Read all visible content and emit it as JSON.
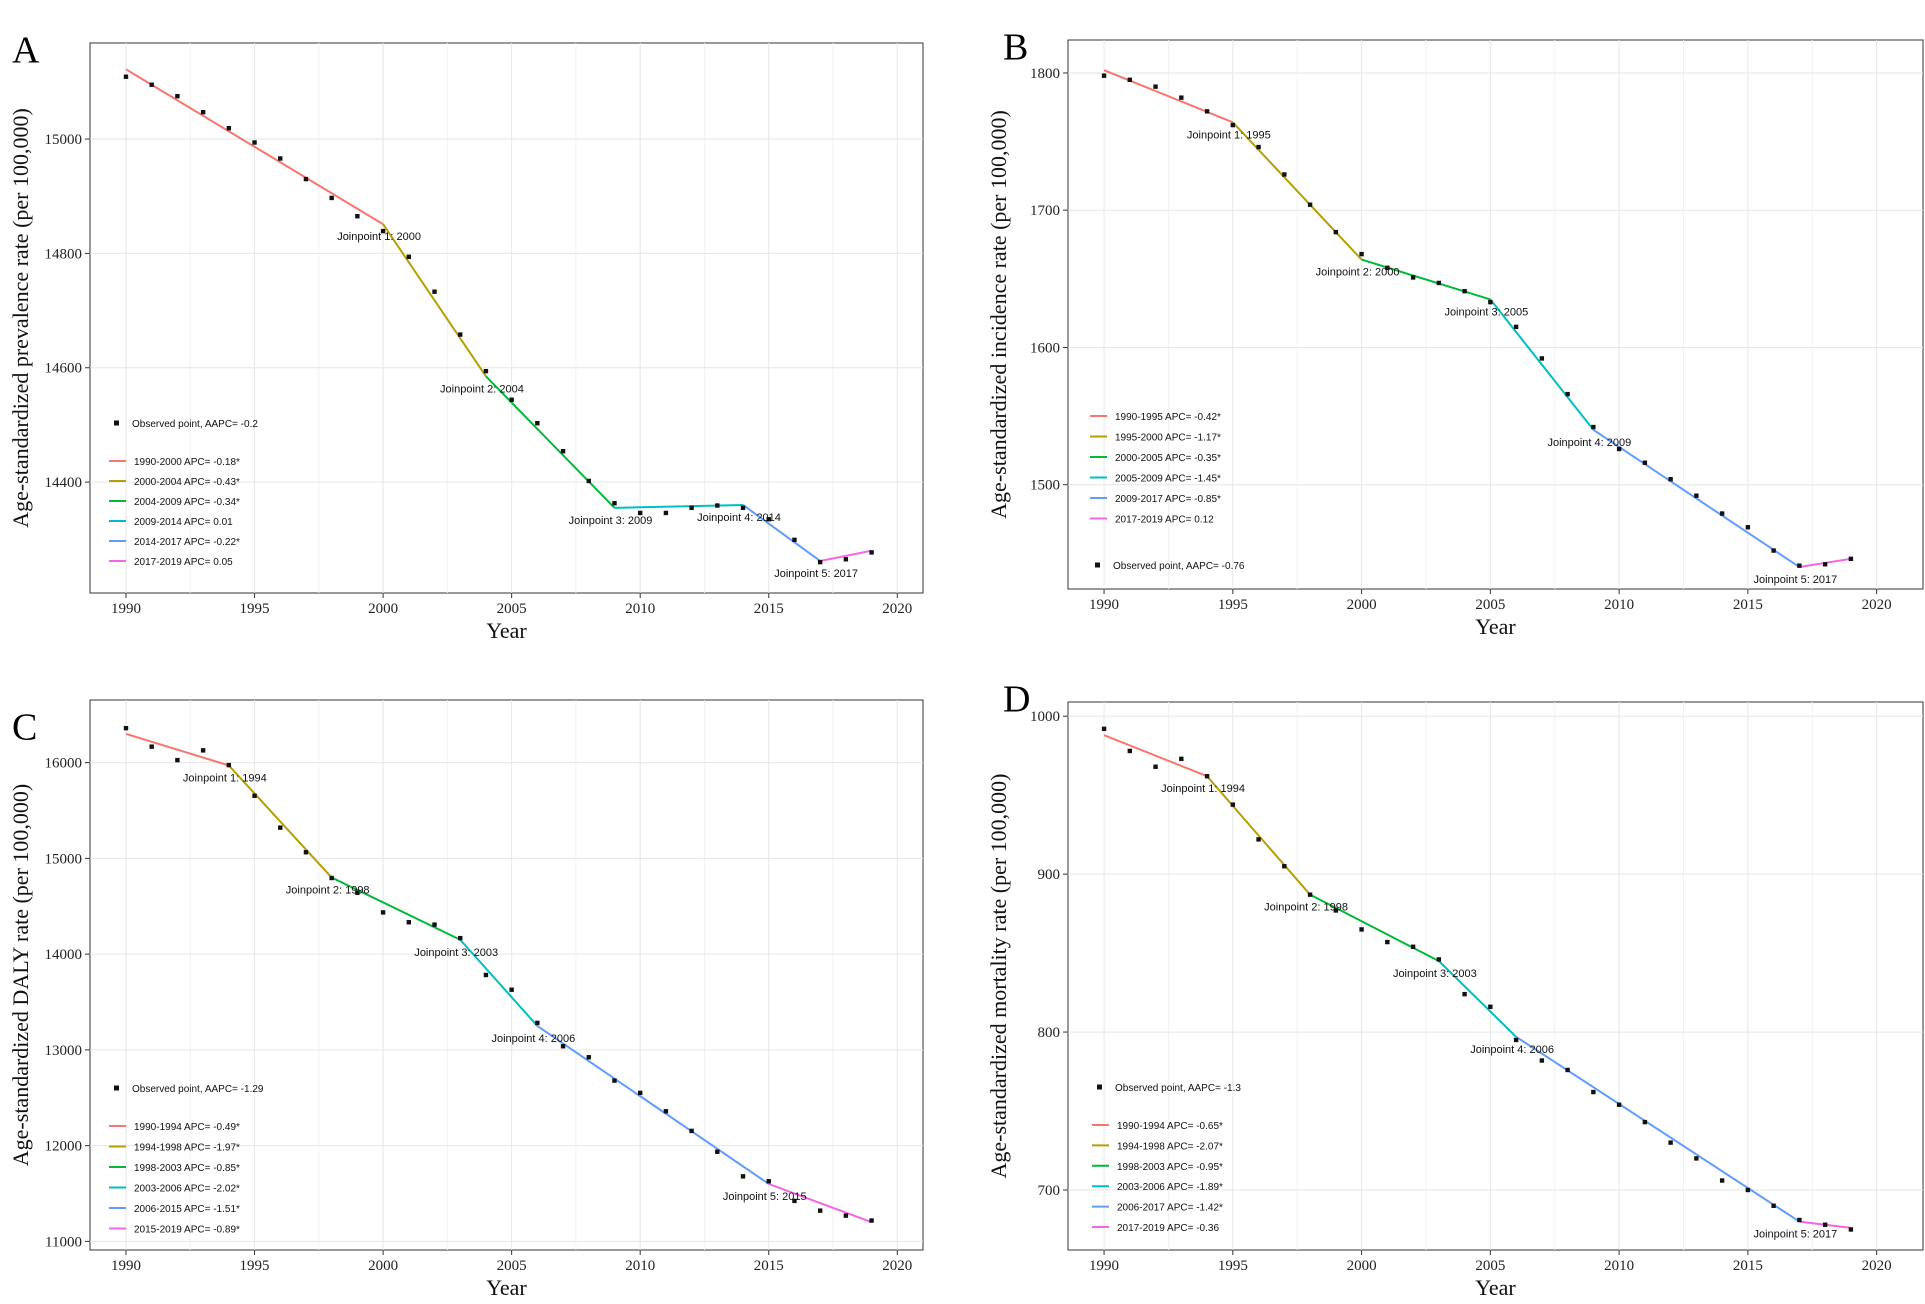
{
  "chart_data": [
    {
      "panel": "A",
      "type": "line",
      "xlabel": "Year",
      "ylabel": "Age-standardized prevalence rate (per 100,000)",
      "xlim": [
        1988.6,
        2021
      ],
      "ylim": [
        14206,
        15168
      ],
      "xticks": [
        1990,
        1995,
        2000,
        2005,
        2010,
        2015,
        2020
      ],
      "yticks": [
        14400,
        14600,
        14800,
        15000
      ],
      "observed_label": "Observed point, AAPC= -0.2",
      "legend_observed_first": true,
      "x": [
        1990,
        1991,
        1992,
        1993,
        1994,
        1995,
        1996,
        1997,
        1998,
        1999,
        2000,
        2001,
        2002,
        2003,
        2004,
        2005,
        2006,
        2007,
        2008,
        2009,
        2010,
        2011,
        2012,
        2013,
        2014,
        2015,
        2016,
        2017,
        2018,
        2019
      ],
      "observed": [
        15109,
        15095,
        15075,
        15047,
        15019,
        14994,
        14966,
        14930,
        14897,
        14865,
        14839,
        14794,
        14733,
        14658,
        14594,
        14544,
        14503,
        14454,
        14402,
        14363,
        14346,
        14346,
        14355,
        14359,
        14355,
        14335,
        14299,
        14260,
        14265,
        14277
      ],
      "segments": [
        {
          "label": "1990-2000 APC= -0.18*",
          "x": [
            1990,
            2000
          ],
          "y": [
            15122,
            14851
          ],
          "color": "#F8766D"
        },
        {
          "label": "2000-2004 APC= -0.43*",
          "x": [
            2000,
            2004
          ],
          "y": [
            14851,
            14585
          ],
          "color": "#B79F00"
        },
        {
          "label": "2004-2009 APC= -0.34*",
          "x": [
            2004,
            2009
          ],
          "y": [
            14585,
            14355
          ],
          "color": "#00BA38"
        },
        {
          "label": "2009-2014 APC= 0.01",
          "x": [
            2009,
            2014
          ],
          "y": [
            14355,
            14360
          ],
          "color": "#00BFC4"
        },
        {
          "label": "2014-2017 APC= -0.22*",
          "x": [
            2014,
            2017
          ],
          "y": [
            14360,
            14262
          ],
          "color": "#619CFF"
        },
        {
          "label": "2017-2019 APC= 0.05",
          "x": [
            2017,
            2019
          ],
          "y": [
            14262,
            14280
          ],
          "color": "#F564E3"
        }
      ],
      "joinpoints": [
        {
          "label": "Joinpoint 1: 2000",
          "x": 2000,
          "y": 14851
        },
        {
          "label": "Joinpoint 2: 2004",
          "x": 2004,
          "y": 14585
        },
        {
          "label": "Joinpoint 3: 2009",
          "x": 2009,
          "y": 14355
        },
        {
          "label": "Joinpoint 4: 2014",
          "x": 2014,
          "y": 14360
        },
        {
          "label": "Joinpoint 5: 2017",
          "x": 2017,
          "y": 14262
        }
      ]
    },
    {
      "panel": "B",
      "type": "line",
      "xlabel": "Year",
      "ylabel": "Age-standardized incidence rate (per 100,000)",
      "xlim": [
        1988.6,
        2021.8
      ],
      "ylim": [
        1424,
        1824
      ],
      "xticks": [
        1990,
        1995,
        2000,
        2005,
        2010,
        2015,
        2020
      ],
      "yticks": [
        1500,
        1600,
        1700,
        1800
      ],
      "observed_label": "Observed point, AAPC= -0.76",
      "legend_observed_first": false,
      "x": [
        1990,
        1991,
        1992,
        1993,
        1994,
        1995,
        1996,
        1997,
        1998,
        1999,
        2000,
        2001,
        2002,
        2003,
        2004,
        2005,
        2006,
        2007,
        2008,
        2009,
        2010,
        2011,
        2012,
        2013,
        2014,
        2015,
        2016,
        2017,
        2018,
        2019
      ],
      "observed": [
        1798,
        1795,
        1790,
        1782,
        1772,
        1762,
        1746,
        1726,
        1704,
        1684,
        1668,
        1658,
        1651,
        1647,
        1641,
        1633,
        1615,
        1592,
        1566,
        1542,
        1526,
        1516,
        1504,
        1492,
        1479,
        1469,
        1452,
        1441,
        1442,
        1446
      ],
      "segments": [
        {
          "label": "1990-1995 APC= -0.42*",
          "x": [
            1990,
            1995
          ],
          "y": [
            1802,
            1764
          ],
          "color": "#F8766D"
        },
        {
          "label": "1995-2000 APC= -1.17*",
          "x": [
            1995,
            2000
          ],
          "y": [
            1764,
            1664
          ],
          "color": "#B79F00"
        },
        {
          "label": "2000-2005 APC= -0.35*",
          "x": [
            2000,
            2005
          ],
          "y": [
            1664,
            1635
          ],
          "color": "#00BA38"
        },
        {
          "label": "2005-2009 APC= -1.45*",
          "x": [
            2005,
            2009
          ],
          "y": [
            1635,
            1540
          ],
          "color": "#00BFC4"
        },
        {
          "label": "2009-2017 APC= -0.85*",
          "x": [
            2009,
            2017
          ],
          "y": [
            1540,
            1440
          ],
          "color": "#619CFF"
        },
        {
          "label": "2017-2019 APC= 0.12",
          "x": [
            2017,
            2019
          ],
          "y": [
            1440,
            1446
          ],
          "color": "#F564E3"
        }
      ],
      "joinpoints": [
        {
          "label": "Joinpoint 1: 1995",
          "x": 1995,
          "y": 1764
        },
        {
          "label": "Joinpoint 2: 2000",
          "x": 2000,
          "y": 1664
        },
        {
          "label": "Joinpoint 3: 2005",
          "x": 2005,
          "y": 1635
        },
        {
          "label": "Joinpoint 4: 2009",
          "x": 2009,
          "y": 1540
        },
        {
          "label": "Joinpoint 5: 2017",
          "x": 2017,
          "y": 1440
        }
      ]
    },
    {
      "panel": "C",
      "type": "line",
      "xlabel": "Year",
      "ylabel": "Age-standardized DALY rate (per 100,000)",
      "xlim": [
        1988.6,
        2021
      ],
      "ylim": [
        10910,
        16654
      ],
      "xticks": [
        1990,
        1995,
        2000,
        2005,
        2010,
        2015,
        2020
      ],
      "yticks": [
        11000,
        12000,
        13000,
        14000,
        15000,
        16000
      ],
      "observed_label": "Observed point, AAPC= -1.29",
      "legend_observed_first": true,
      "x": [
        1990,
        1991,
        1992,
        1993,
        1994,
        1995,
        1996,
        1997,
        1998,
        1999,
        2000,
        2001,
        2002,
        2003,
        2004,
        2005,
        2006,
        2007,
        2008,
        2009,
        2010,
        2011,
        2012,
        2013,
        2014,
        2015,
        2016,
        2017,
        2018,
        2019
      ],
      "observed": [
        16360,
        16167,
        16026,
        16128,
        15974,
        15654,
        15321,
        15064,
        14795,
        14641,
        14436,
        14333,
        14308,
        14167,
        13782,
        13628,
        13282,
        13038,
        12923,
        12679,
        12551,
        12359,
        12154,
        11936,
        11679,
        11628,
        11423,
        11321,
        11269,
        11218
      ],
      "segments": [
        {
          "label": "1990-1994 APC= -0.49*",
          "x": [
            1990,
            1994
          ],
          "y": [
            16300,
            15970
          ],
          "color": "#F8766D"
        },
        {
          "label": "1994-1998 APC= -1.97*",
          "x": [
            1994,
            1998
          ],
          "y": [
            15970,
            14800
          ],
          "color": "#B79F00"
        },
        {
          "label": "1998-2003 APC= -0.85*",
          "x": [
            1998,
            2003
          ],
          "y": [
            14800,
            14150
          ],
          "color": "#00BA38"
        },
        {
          "label": "2003-2006 APC= -2.02*",
          "x": [
            2003,
            2006
          ],
          "y": [
            14150,
            13250
          ],
          "color": "#00BFC4"
        },
        {
          "label": "2006-2015 APC= -1.51*",
          "x": [
            2006,
            2015
          ],
          "y": [
            13250,
            11600
          ],
          "color": "#619CFF"
        },
        {
          "label": "2015-2019 APC= -0.89*",
          "x": [
            2015,
            2019
          ],
          "y": [
            11600,
            11200
          ],
          "color": "#F564E3"
        }
      ],
      "joinpoints": [
        {
          "label": "Joinpoint 1: 1994",
          "x": 1994,
          "y": 15970
        },
        {
          "label": "Joinpoint 2: 1998",
          "x": 1998,
          "y": 14800
        },
        {
          "label": "Joinpoint 3: 2003",
          "x": 2003,
          "y": 14150
        },
        {
          "label": "Joinpoint 4: 2006",
          "x": 2006,
          "y": 13250
        },
        {
          "label": "Joinpoint 5: 2015",
          "x": 2015,
          "y": 11600
        }
      ]
    },
    {
      "panel": "D",
      "type": "line",
      "xlabel": "Year",
      "ylabel": "Age-standardized mortality rate (per 100,000)",
      "xlim": [
        1988.6,
        2021.8
      ],
      "ylim": [
        662,
        1009
      ],
      "xticks": [
        1990,
        1995,
        2000,
        2005,
        2010,
        2015,
        2020
      ],
      "yticks": [
        700,
        800,
        900,
        1000
      ],
      "observed_label": "Observed point, AAPC= -1.3",
      "legend_observed_first": true,
      "x": [
        1990,
        1991,
        1992,
        1993,
        1994,
        1995,
        1996,
        1997,
        1998,
        1999,
        2000,
        2001,
        2002,
        2003,
        2004,
        2005,
        2006,
        2007,
        2008,
        2009,
        2010,
        2011,
        2012,
        2013,
        2014,
        2015,
        2016,
        2017,
        2018,
        2019
      ],
      "observed": [
        992,
        978,
        968,
        973,
        962,
        944,
        922,
        905,
        887,
        877,
        865,
        857,
        854,
        846,
        824,
        816,
        795,
        782,
        776,
        762,
        754,
        743,
        730,
        720,
        706,
        700,
        690,
        681,
        678,
        675
      ],
      "segments": [
        {
          "label": "1990-1994 APC= -0.65*",
          "x": [
            1990,
            1994
          ],
          "y": [
            988,
            962
          ],
          "color": "#F8766D"
        },
        {
          "label": "1994-1998 APC= -2.07*",
          "x": [
            1994,
            1998
          ],
          "y": [
            962,
            887
          ],
          "color": "#B79F00"
        },
        {
          "label": "1998-2003 APC= -0.95*",
          "x": [
            1998,
            2003
          ],
          "y": [
            887,
            845
          ],
          "color": "#00BA38"
        },
        {
          "label": "2003-2006 APC= -1.89*",
          "x": [
            2003,
            2006
          ],
          "y": [
            845,
            797
          ],
          "color": "#00BFC4"
        },
        {
          "label": "2006-2017 APC= -1.42*",
          "x": [
            2006,
            2017
          ],
          "y": [
            797,
            680
          ],
          "color": "#619CFF"
        },
        {
          "label": "2017-2019 APC= -0.36",
          "x": [
            2017,
            2019
          ],
          "y": [
            680,
            676
          ],
          "color": "#F564E3"
        }
      ],
      "joinpoints": [
        {
          "label": "Joinpoint 1: 1994",
          "x": 1994,
          "y": 962
        },
        {
          "label": "Joinpoint 2: 1998",
          "x": 1998,
          "y": 887
        },
        {
          "label": "Joinpoint 3: 2003",
          "x": 2003,
          "y": 845
        },
        {
          "label": "Joinpoint 4: 2006",
          "x": 2006,
          "y": 797
        },
        {
          "label": "Joinpoint 5: 2017",
          "x": 2017,
          "y": 680
        }
      ]
    }
  ]
}
